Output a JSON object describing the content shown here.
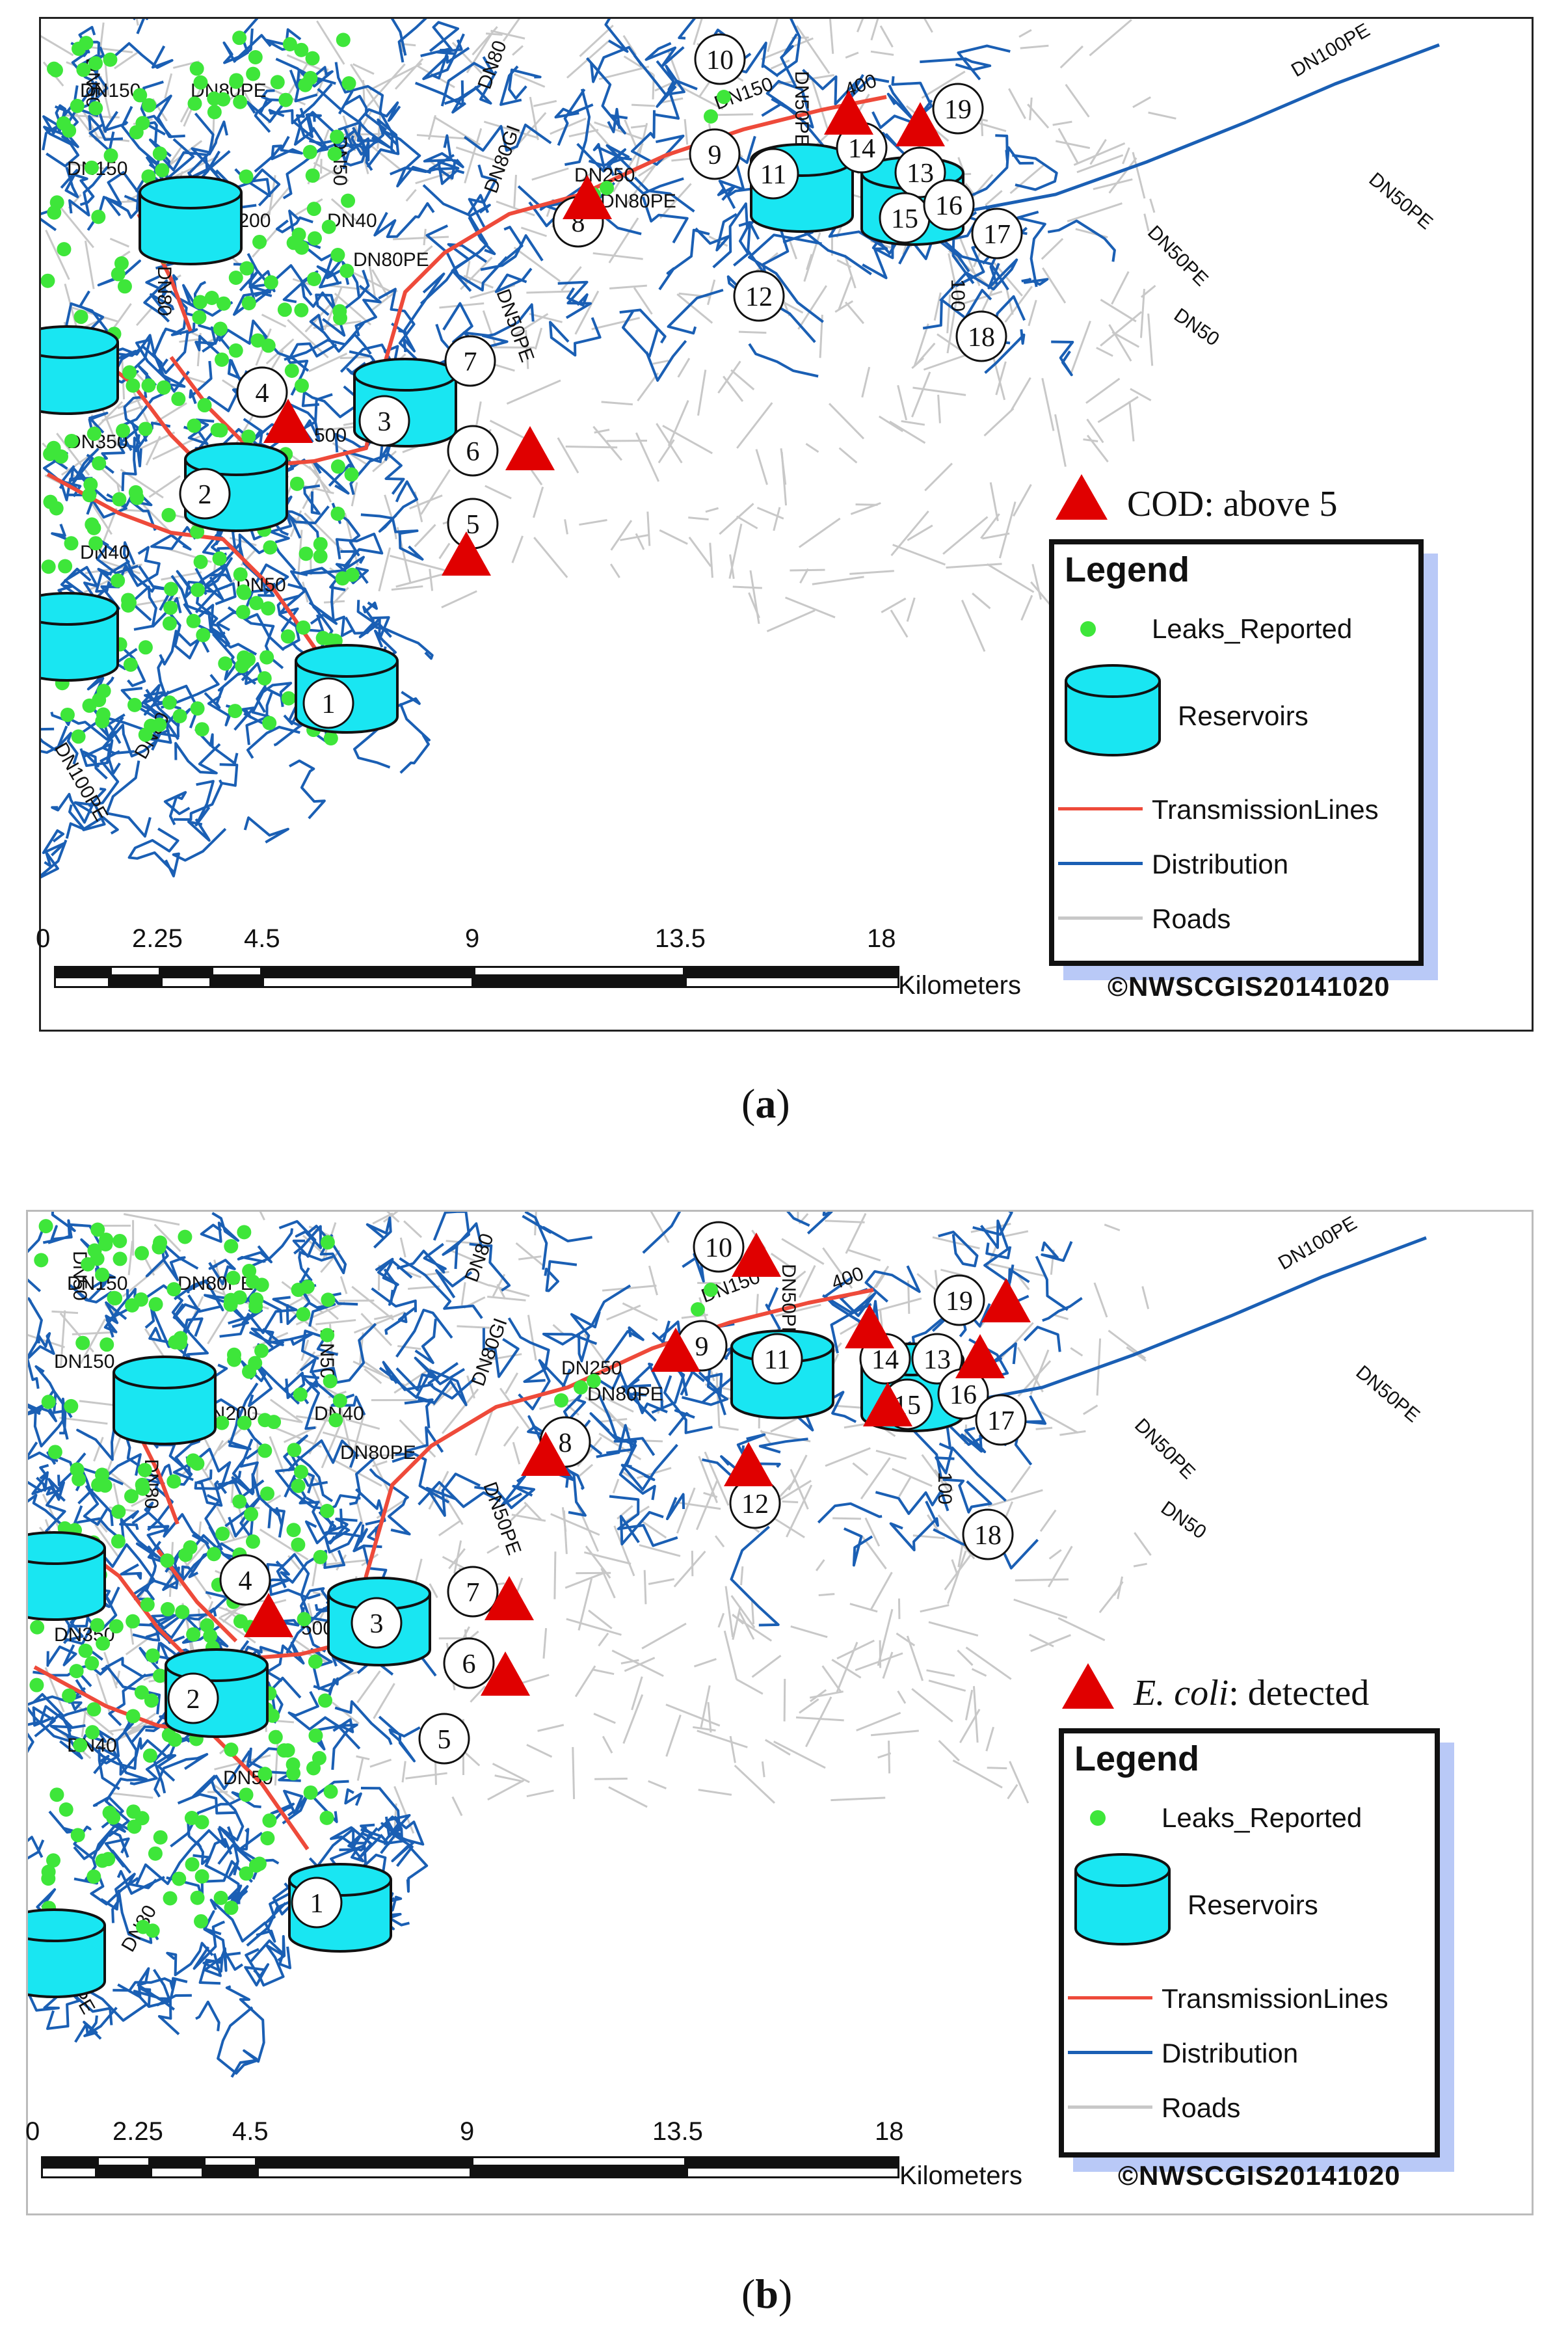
{
  "panels": [
    {
      "id": "a",
      "caption_letter": "a",
      "indicator": {
        "label": "COD: above 5",
        "italic_part": "",
        "rest": "COD: above 5"
      },
      "triangle_sites": [
        "4",
        "5",
        "6",
        "8",
        "13",
        "14"
      ],
      "legend": {
        "title": "Legend",
        "items": [
          {
            "label": "Leaks_Reported",
            "symbol": "green-dot-icon"
          },
          {
            "label": "Reservoirs",
            "symbol": "reservoir-cylinder-icon"
          },
          {
            "label": "TransmissionLines",
            "symbol": "red-line-icon"
          },
          {
            "label": "Distribution",
            "symbol": "blue-line-icon"
          },
          {
            "label": "Roads",
            "symbol": "grey-line-icon"
          }
        ]
      },
      "scale": {
        "ticks": [
          "0",
          "2.25",
          "4.5",
          "9",
          "13.5",
          "18"
        ],
        "unit": "Kilometers"
      },
      "copyright": "©NWSCGIS20141020"
    },
    {
      "id": "b",
      "caption_letter": "b",
      "indicator": {
        "label": "E. coli: detected",
        "italic_part": "E. coli",
        "rest": ": detected"
      },
      "triangle_sites": [
        "4",
        "6",
        "7",
        "8",
        "9",
        "10",
        "12",
        "13",
        "14",
        "15",
        "19"
      ],
      "legend": {
        "title": "Legend",
        "items": [
          {
            "label": "Leaks_Reported",
            "symbol": "green-dot-icon"
          },
          {
            "label": "Reservoirs",
            "symbol": "reservoir-cylinder-icon"
          },
          {
            "label": "TransmissionLines",
            "symbol": "red-line-icon"
          },
          {
            "label": "Distribution",
            "symbol": "blue-line-icon"
          },
          {
            "label": "Roads",
            "symbol": "grey-line-icon"
          }
        ]
      },
      "scale": {
        "ticks": [
          "0",
          "2.25",
          "4.5",
          "9",
          "13.5",
          "18"
        ],
        "unit": "Kilometers"
      },
      "copyright": "©NWSCGIS20141020"
    }
  ],
  "sites": [
    "1",
    "2",
    "3",
    "4",
    "5",
    "6",
    "7",
    "8",
    "9",
    "10",
    "11",
    "12",
    "13",
    "14",
    "15",
    "16",
    "17",
    "18",
    "19"
  ],
  "pipe_labels_a": [
    "DN150",
    "DN50",
    "DN40",
    "DN80",
    "DN50PE",
    "DN250",
    "DN80PE",
    "DN150",
    "DN50PE",
    "DN100PE",
    "DN150",
    "DN50",
    "DN80",
    "DN350",
    "DN40",
    "DN50",
    "DN100PE",
    "DN80",
    "DN50PE",
    "DN80GI",
    "400",
    "500",
    "100",
    "DN50PE",
    "DN50",
    "DN80PE",
    "DN200",
    "DN80PE"
  ],
  "pipe_labels_b": [
    "DN150",
    "DN50",
    "DN40",
    "DN80",
    "DN50PE",
    "DN250",
    "DN80PE",
    "DN150",
    "DN50PE",
    "DN100PE",
    "DN150",
    "DN50",
    "DN80",
    "DN350",
    "DN40",
    "DN50",
    "DN100PE",
    "DN80",
    "DN50PE",
    "DN80GI",
    "400",
    "500",
    "100",
    "DN50PE",
    "DN50",
    "DN80PE",
    "DN200",
    "DN80PE"
  ],
  "colors": {
    "triangle": "#e00000",
    "leak_dot": "#3ee63a",
    "reservoir_fill": "#19e6f2",
    "transmission": "#ee4a3a",
    "distribution": "#1a5fb4",
    "roads": "#c8c8c8",
    "legend_shadow": "#b9c9f7"
  }
}
